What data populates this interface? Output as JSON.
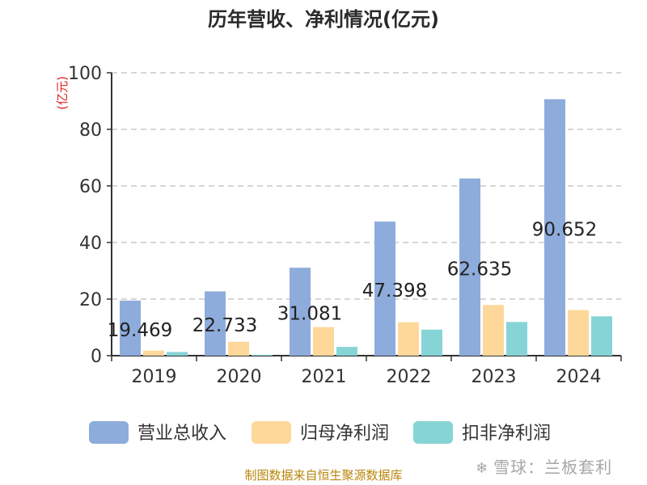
{
  "title": "历年营收、净利情况(亿元)",
  "source": "制图数据来自恒生聚源数据库",
  "watermark": "雪球：兰板套利",
  "chart_data": {
    "type": "bar",
    "title": "历年营收、净利情况(亿元)",
    "ylabel": "(亿元)",
    "xlabel": "",
    "ylim": [
      0,
      100
    ],
    "yticks": [
      0,
      20,
      40,
      60,
      80,
      100
    ],
    "grid": true,
    "legend_position": "bottom",
    "categories": [
      "2019",
      "2020",
      "2021",
      "2022",
      "2023",
      "2024"
    ],
    "series": [
      {
        "name": "营业总收入",
        "color": "#8eacdb",
        "values": [
          19.469,
          22.733,
          31.081,
          47.398,
          62.635,
          90.652
        ],
        "labels": [
          "19.469",
          "22.733",
          "31.081",
          "47.398",
          "62.635",
          "90.652"
        ]
      },
      {
        "name": "归母净利润",
        "color": "#fdd89a",
        "values": [
          1.8,
          4.9,
          10.1,
          11.8,
          17.9,
          16.1
        ]
      },
      {
        "name": "扣非净利润",
        "color": "#86d4d6",
        "values": [
          1.3,
          0.3,
          3.1,
          9.2,
          11.9,
          13.9
        ]
      }
    ]
  }
}
